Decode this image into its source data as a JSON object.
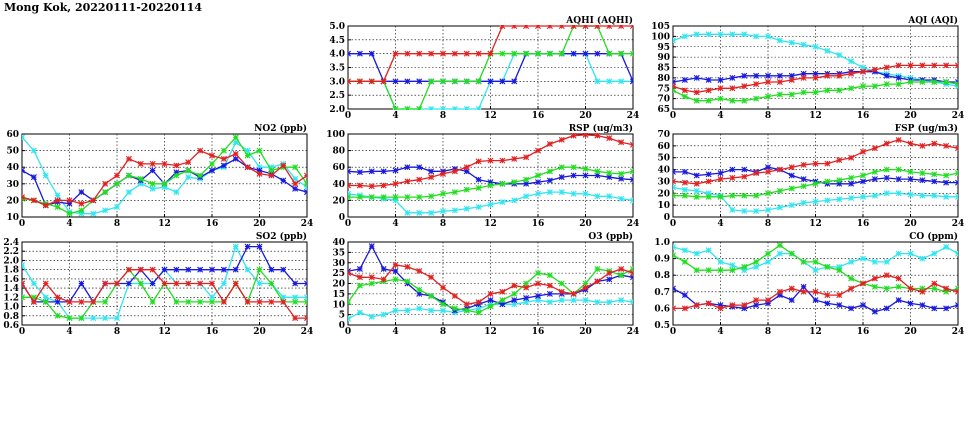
{
  "page": {
    "title": "Mong Kok, 20220111-20220114"
  },
  "colors": {
    "cyan": "#33e5f0",
    "blue": "#1a1adb",
    "green": "#22dd22",
    "red": "#e02222"
  },
  "chart_data": [
    {
      "id": "aqhi",
      "type": "line",
      "title": "AQHI (AQHI)",
      "xlim": [
        0,
        24
      ],
      "xticks": [
        0,
        4,
        8,
        12,
        16,
        20,
        24
      ],
      "ylim": [
        2.0,
        5.0
      ],
      "yticks": [
        "2.0",
        "2.5",
        "3.0",
        "3.5",
        "4.0",
        "4.5",
        "5.0"
      ],
      "grid": true,
      "series": [
        {
          "color": "cyan",
          "values": [
            3,
            3,
            3,
            3,
            2,
            2,
            2,
            2,
            2,
            2,
            2,
            2,
            3,
            3,
            4,
            4,
            4,
            4,
            4,
            4,
            4,
            3,
            3,
            3,
            3
          ]
        },
        {
          "color": "blue",
          "values": [
            4,
            4,
            4,
            3,
            3,
            3,
            3,
            3,
            3,
            3,
            3,
            3,
            3,
            3,
            3,
            4,
            4,
            4,
            4,
            4,
            4,
            4,
            4,
            4,
            3
          ]
        },
        {
          "color": "green",
          "values": [
            3,
            3,
            3,
            3,
            2,
            2,
            2,
            3,
            3,
            3,
            3,
            3,
            4,
            4,
            4,
            4,
            4,
            4,
            4,
            5,
            5,
            5,
            4,
            4,
            4
          ]
        },
        {
          "color": "red",
          "values": [
            3,
            3,
            3,
            3,
            4,
            4,
            4,
            4,
            4,
            4,
            4,
            4,
            4,
            5,
            5,
            5,
            5,
            5,
            5,
            5,
            5,
            5,
            5,
            5,
            5
          ]
        }
      ]
    },
    {
      "id": "aqi",
      "type": "line",
      "title": "AQI (AQI)",
      "xlim": [
        0,
        24
      ],
      "xticks": [
        0,
        4,
        8,
        12,
        16,
        20,
        24
      ],
      "ylim": [
        65,
        105
      ],
      "yticks": [
        "65",
        "70",
        "75",
        "80",
        "85",
        "90",
        "95",
        "100",
        "105"
      ],
      "grid": true,
      "series": [
        {
          "color": "cyan",
          "values": [
            98,
            100,
            101,
            101,
            101,
            101,
            101,
            100,
            100,
            98,
            97,
            96,
            95,
            93,
            91,
            88,
            85,
            83,
            82,
            81,
            80,
            79,
            78,
            77,
            76
          ]
        },
        {
          "color": "blue",
          "values": [
            78,
            79,
            80,
            79,
            79,
            80,
            81,
            81,
            81,
            81,
            81,
            82,
            82,
            82,
            82,
            83,
            83,
            83,
            81,
            80,
            79,
            79,
            79,
            78,
            78
          ]
        },
        {
          "color": "green",
          "values": [
            74,
            71,
            69,
            69,
            70,
            69,
            69,
            70,
            71,
            72,
            72,
            73,
            73,
            74,
            74,
            75,
            76,
            76,
            77,
            77,
            78,
            78,
            78,
            78,
            77
          ]
        },
        {
          "color": "red",
          "values": [
            76,
            74,
            73,
            74,
            75,
            75,
            76,
            77,
            78,
            78,
            79,
            80,
            80,
            81,
            81,
            82,
            83,
            84,
            85,
            86,
            86,
            86,
            86,
            86,
            86
          ]
        }
      ]
    },
    {
      "id": "no2",
      "type": "line",
      "title": "NO2 (ppb)",
      "xlim": [
        0,
        24
      ],
      "xticks": [
        0,
        4,
        8,
        12,
        16,
        20,
        24
      ],
      "ylim": [
        10,
        60
      ],
      "yticks": [
        "10",
        "20",
        "30",
        "40",
        "50",
        "60"
      ],
      "grid": true,
      "series": [
        {
          "color": "cyan",
          "values": [
            58,
            50,
            35,
            23,
            13,
            12,
            12,
            14,
            16,
            25,
            30,
            27,
            28,
            25,
            34,
            33,
            38,
            40,
            55,
            50,
            40,
            40,
            42,
            33,
            28
          ]
        },
        {
          "color": "blue",
          "values": [
            38,
            34,
            17,
            19,
            18,
            25,
            20,
            25,
            30,
            35,
            32,
            38,
            30,
            37,
            38,
            34,
            38,
            41,
            45,
            40,
            38,
            36,
            32,
            27,
            25
          ]
        },
        {
          "color": "green",
          "values": [
            21,
            20,
            18,
            16,
            12,
            14,
            20,
            25,
            30,
            35,
            33,
            30,
            30,
            35,
            38,
            35,
            42,
            50,
            58,
            47,
            50,
            38,
            40,
            40,
            30
          ]
        },
        {
          "color": "red",
          "values": [
            22,
            20,
            17,
            20,
            20,
            18,
            20,
            30,
            35,
            45,
            42,
            42,
            42,
            41,
            43,
            50,
            47,
            45,
            48,
            40,
            36,
            35,
            41,
            30,
            35
          ]
        }
      ]
    },
    {
      "id": "rsp",
      "type": "line",
      "title": "RSP (ug/m3)",
      "xlim": [
        0,
        24
      ],
      "xticks": [
        0,
        4,
        8,
        12,
        16,
        20,
        24
      ],
      "ylim": [
        0,
        100
      ],
      "yticks": [
        "0",
        "20",
        "40",
        "60",
        "80",
        "100"
      ],
      "grid": true,
      "series": [
        {
          "color": "cyan",
          "values": [
            28,
            26,
            24,
            22,
            20,
            5,
            5,
            5,
            7,
            8,
            10,
            12,
            15,
            18,
            20,
            25,
            28,
            30,
            30,
            28,
            28,
            25,
            25,
            22,
            20
          ]
        },
        {
          "color": "blue",
          "values": [
            55,
            54,
            55,
            55,
            56,
            60,
            60,
            55,
            55,
            58,
            55,
            45,
            42,
            40,
            40,
            40,
            42,
            44,
            48,
            50,
            50,
            50,
            48,
            46,
            45
          ]
        },
        {
          "color": "green",
          "values": [
            24,
            24,
            24,
            24,
            24,
            24,
            24,
            25,
            28,
            30,
            33,
            35,
            38,
            40,
            42,
            45,
            50,
            55,
            60,
            60,
            58,
            55,
            53,
            52,
            55
          ]
        },
        {
          "color": "red",
          "values": [
            38,
            38,
            37,
            38,
            40,
            43,
            45,
            48,
            52,
            55,
            60,
            67,
            68,
            68,
            70,
            72,
            80,
            88,
            93,
            98,
            99,
            98,
            95,
            90,
            87
          ]
        }
      ]
    },
    {
      "id": "fsp",
      "type": "line",
      "title": "FSP (ug/m3)",
      "xlim": [
        0,
        24
      ],
      "xticks": [
        0,
        4,
        8,
        12,
        16,
        20,
        24
      ],
      "ylim": [
        0,
        70
      ],
      "yticks": [
        "0",
        "10",
        "20",
        "30",
        "40",
        "50",
        "60",
        "70"
      ],
      "grid": true,
      "series": [
        {
          "color": "cyan",
          "values": [
            25,
            23,
            22,
            20,
            18,
            6,
            5,
            5,
            6,
            8,
            10,
            12,
            13,
            14,
            15,
            16,
            17,
            18,
            20,
            20,
            19,
            18,
            18,
            17,
            17
          ]
        },
        {
          "color": "blue",
          "values": [
            38,
            38,
            35,
            36,
            37,
            40,
            40,
            38,
            42,
            40,
            35,
            32,
            30,
            28,
            28,
            28,
            30,
            32,
            33,
            32,
            32,
            31,
            30,
            29,
            29
          ]
        },
        {
          "color": "green",
          "values": [
            18,
            18,
            17,
            17,
            17,
            18,
            18,
            18,
            20,
            22,
            24,
            26,
            28,
            30,
            31,
            33,
            35,
            38,
            40,
            40,
            38,
            37,
            36,
            35,
            37
          ]
        },
        {
          "color": "red",
          "values": [
            30,
            29,
            28,
            30,
            32,
            33,
            34,
            37,
            38,
            40,
            42,
            44,
            45,
            45,
            48,
            50,
            55,
            58,
            62,
            65,
            62,
            60,
            62,
            60,
            58
          ]
        }
      ]
    },
    {
      "id": "so2",
      "type": "line",
      "title": "SO2 (ppb)",
      "xlim": [
        0,
        24
      ],
      "xticks": [
        0,
        4,
        8,
        12,
        16,
        20,
        24
      ],
      "ylim": [
        0.6,
        2.4
      ],
      "yticks": [
        "0.6",
        "0.8",
        "1.0",
        "1.2",
        "1.4",
        "1.6",
        "1.8",
        "2.0",
        "2.2",
        "2.4"
      ],
      "grid": true,
      "series": [
        {
          "color": "cyan",
          "values": [
            1.9,
            1.5,
            1.2,
            1.1,
            0.75,
            0.75,
            0.75,
            0.75,
            0.75,
            1.5,
            1.5,
            1.5,
            1.8,
            1.5,
            1.5,
            1.5,
            1.2,
            1.5,
            2.3,
            1.8,
            1.5,
            1.5,
            1.2,
            1.2,
            1.2
          ]
        },
        {
          "color": "blue",
          "values": [
            1.5,
            1.1,
            1.1,
            1.1,
            1.1,
            1.5,
            1.1,
            1.5,
            1.5,
            1.5,
            1.8,
            1.5,
            1.8,
            1.8,
            1.8,
            1.8,
            1.8,
            1.8,
            1.8,
            2.3,
            2.3,
            1.8,
            1.8,
            1.5,
            1.5
          ]
        },
        {
          "color": "green",
          "values": [
            1.2,
            1.2,
            1.1,
            0.8,
            0.75,
            0.75,
            1.1,
            1.1,
            1.5,
            1.8,
            1.5,
            1.1,
            1.5,
            1.1,
            1.1,
            1.1,
            1.1,
            1.1,
            1.5,
            1.1,
            1.8,
            1.5,
            1.1,
            1.1,
            1.1
          ]
        },
        {
          "color": "red",
          "values": [
            1.5,
            1.1,
            1.5,
            1.2,
            1.1,
            1.1,
            1.1,
            1.5,
            1.5,
            1.8,
            1.8,
            1.8,
            1.5,
            1.5,
            1.5,
            1.5,
            1.5,
            1.1,
            1.5,
            1.1,
            1.1,
            1.1,
            1.1,
            0.75,
            0.75
          ]
        }
      ]
    },
    {
      "id": "o3",
      "type": "line",
      "title": "O3 (ppb)",
      "xlim": [
        0,
        24
      ],
      "xticks": [
        0,
        4,
        8,
        12,
        16,
        20,
        24
      ],
      "ylim": [
        0,
        40
      ],
      "yticks": [
        "0",
        "5",
        "10",
        "15",
        "20",
        "25",
        "30",
        "35",
        "40"
      ],
      "grid": true,
      "series": [
        {
          "color": "cyan",
          "values": [
            3,
            6,
            4,
            5,
            7,
            7,
            8,
            7,
            7,
            6,
            7,
            8,
            10,
            10,
            10,
            11,
            12,
            11,
            12,
            12,
            12,
            11,
            11,
            12,
            11
          ]
        },
        {
          "color": "blue",
          "values": [
            26,
            27,
            38,
            27,
            26,
            20,
            15,
            14,
            11,
            7,
            8,
            10,
            12,
            10,
            12,
            13,
            14,
            15,
            15,
            15,
            17,
            21,
            22,
            24,
            23
          ]
        },
        {
          "color": "green",
          "values": [
            11,
            19,
            20,
            21,
            22,
            21,
            17,
            14,
            10,
            8,
            7,
            6,
            9,
            12,
            15,
            20,
            25,
            24,
            20,
            15,
            20,
            27,
            26,
            24,
            27
          ]
        },
        {
          "color": "red",
          "values": [
            25,
            23,
            23,
            22,
            29,
            28,
            26,
            23,
            18,
            14,
            10,
            11,
            15,
            16,
            19,
            18,
            20,
            19,
            16,
            15,
            18,
            21,
            25,
            27,
            25
          ]
        }
      ]
    },
    {
      "id": "co",
      "type": "line",
      "title": "CO (ppm)",
      "xlim": [
        0,
        24
      ],
      "xticks": [
        0,
        4,
        8,
        12,
        16,
        20,
        24
      ],
      "ylim": [
        0.5,
        1.0
      ],
      "yticks": [
        "0.5",
        "0.6",
        "0.7",
        "0.8",
        "0.9",
        "1.0"
      ],
      "grid": true,
      "series": [
        {
          "color": "cyan",
          "values": [
            0.97,
            0.95,
            0.93,
            0.95,
            0.88,
            0.86,
            0.83,
            0.85,
            0.88,
            0.93,
            0.93,
            0.88,
            0.83,
            0.85,
            0.85,
            0.88,
            0.9,
            0.88,
            0.88,
            0.93,
            0.93,
            0.9,
            0.93,
            0.97,
            0.93
          ]
        },
        {
          "color": "blue",
          "values": [
            0.72,
            0.68,
            0.62,
            0.63,
            0.62,
            0.61,
            0.6,
            0.62,
            0.63,
            0.68,
            0.65,
            0.73,
            0.65,
            0.63,
            0.62,
            0.6,
            0.62,
            0.58,
            0.6,
            0.65,
            0.63,
            0.62,
            0.6,
            0.6,
            0.62
          ]
        },
        {
          "color": "green",
          "values": [
            0.92,
            0.88,
            0.83,
            0.83,
            0.83,
            0.83,
            0.85,
            0.88,
            0.93,
            0.98,
            0.93,
            0.88,
            0.88,
            0.85,
            0.83,
            0.78,
            0.75,
            0.73,
            0.72,
            0.73,
            0.72,
            0.72,
            0.72,
            0.7,
            0.72
          ]
        },
        {
          "color": "red",
          "values": [
            0.6,
            0.6,
            0.62,
            0.63,
            0.6,
            0.62,
            0.62,
            0.65,
            0.65,
            0.7,
            0.72,
            0.7,
            0.7,
            0.68,
            0.68,
            0.72,
            0.75,
            0.78,
            0.8,
            0.78,
            0.72,
            0.7,
            0.75,
            0.72,
            0.7
          ]
        }
      ]
    }
  ]
}
